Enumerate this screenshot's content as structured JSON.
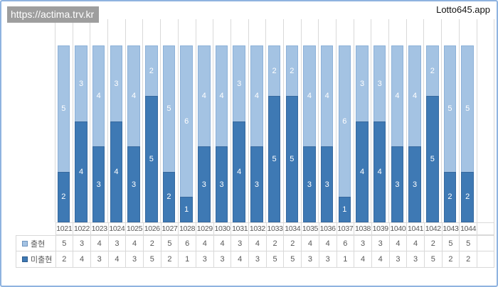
{
  "window": {
    "url_overlay": "https://actima.trv.kr",
    "app_title": "Lotto645.app"
  },
  "colors": {
    "series_appear": "#a4c3e3",
    "series_miss": "#3e79b4",
    "gridline": "#d9d9d9",
    "table_text": "#595959",
    "bar_label_text": "#ffffff",
    "window_border": "#8fb3e0",
    "url_overlay_bg": "#9e9e9e"
  },
  "chart_data": {
    "type": "bar",
    "stacked": true,
    "title": "",
    "xlabel": "",
    "ylabel": "",
    "ylim": [
      0,
      8
    ],
    "grid": "vertical-category-lines-only",
    "legend_position": "data-table-left",
    "data_labels": "inside-center-white",
    "stack_bottom_to_top": [
      "미출현",
      "출현"
    ],
    "categories": [
      "1021",
      "1022",
      "1023",
      "1024",
      "1025",
      "1026",
      "1027",
      "1028",
      "1029",
      "1030",
      "1031",
      "1032",
      "1033",
      "1034",
      "1035",
      "1036",
      "1037",
      "1038",
      "1039",
      "1040",
      "1041",
      "1042",
      "1043",
      "1044"
    ],
    "series": [
      {
        "name": "출현",
        "color": "#a4c3e3",
        "values": [
          5,
          3,
          4,
          3,
          4,
          2,
          5,
          6,
          4,
          4,
          3,
          4,
          2,
          2,
          4,
          4,
          6,
          3,
          3,
          4,
          4,
          2,
          5,
          5
        ]
      },
      {
        "name": "미출현",
        "color": "#3e79b4",
        "values": [
          2,
          4,
          3,
          4,
          3,
          5,
          2,
          1,
          3,
          3,
          4,
          3,
          5,
          5,
          3,
          3,
          1,
          4,
          4,
          3,
          3,
          5,
          2,
          2
        ]
      }
    ]
  }
}
